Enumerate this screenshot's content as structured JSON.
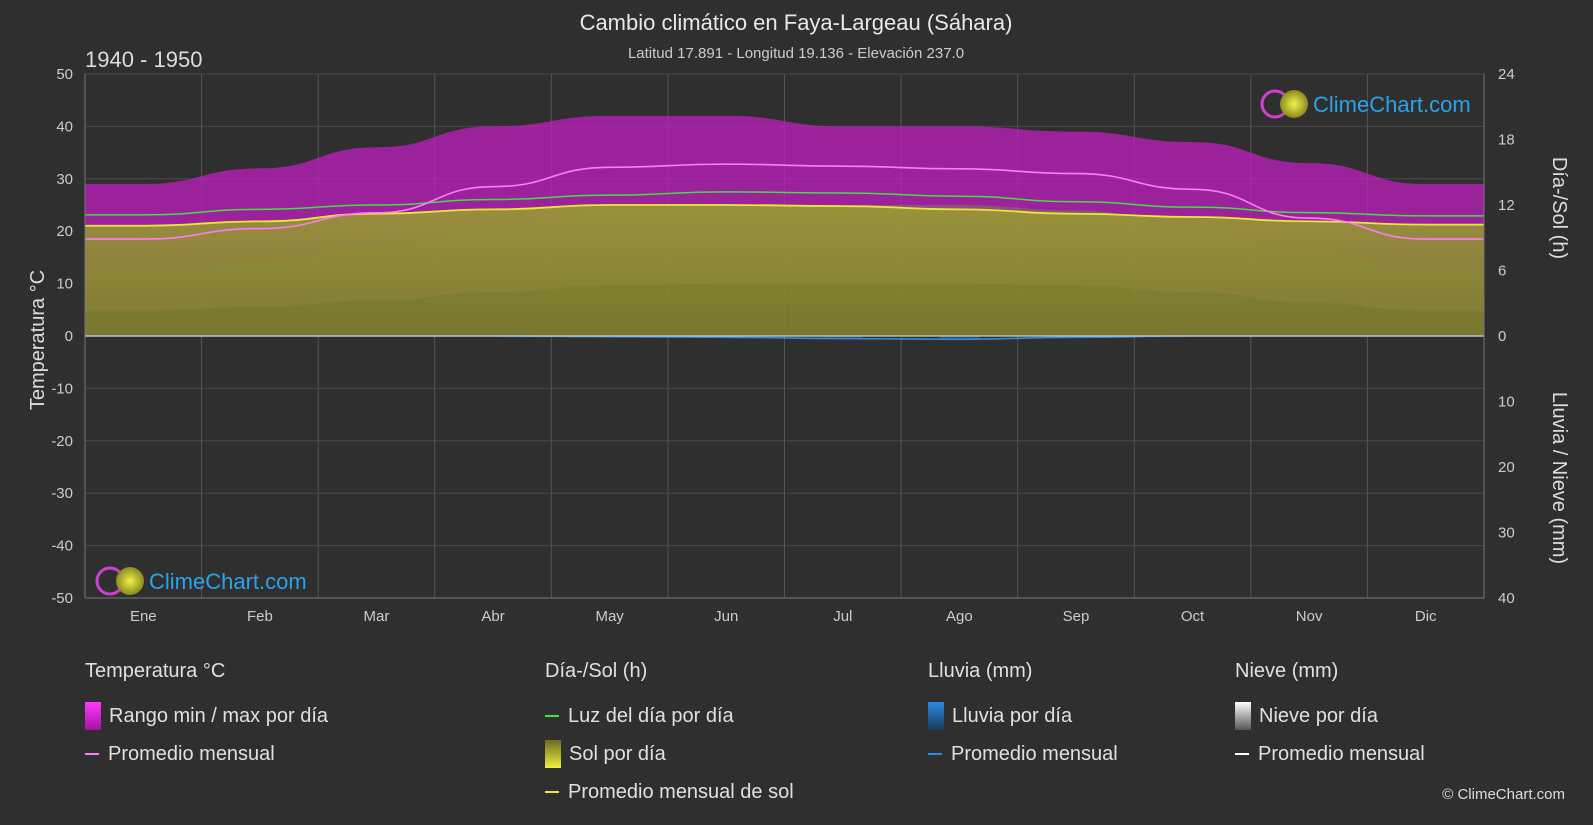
{
  "chart_data": {
    "type": "area",
    "title": "Cambio climático en Faya-Largeau (Sáhara)",
    "subtitle": "Latitud 17.891 - Longitud 19.136 - Elevación 237.0",
    "period": "1940 - 1950",
    "y_left_label": "Temperatura °C",
    "y_right_top_label": "Día-/Sol (h)",
    "y_right_bottom_label": "Lluvia / Nieve (mm)",
    "y_left_range": [
      -50,
      50
    ],
    "y_left_ticks": [
      "50",
      "40",
      "30",
      "20",
      "10",
      "0",
      "-10",
      "-20",
      "-30",
      "-40",
      "-50"
    ],
    "y_right_top_range": [
      0,
      24
    ],
    "y_right_top_ticks": [
      "24",
      "18",
      "12",
      "6",
      "0"
    ],
    "y_right_bottom_range": [
      0,
      40
    ],
    "y_right_bottom_ticks": [
      "0",
      "10",
      "20",
      "30",
      "40"
    ],
    "months": [
      "Ene",
      "Feb",
      "Mar",
      "Abr",
      "May",
      "Jun",
      "Jul",
      "Ago",
      "Sep",
      "Oct",
      "Nov",
      "Dic"
    ],
    "grid": true,
    "series": [
      {
        "name": "Rango min / max por día",
        "kind": "band",
        "min": [
          12,
          14,
          17,
          21,
          24,
          25,
          25,
          25,
          24,
          21,
          16,
          12
        ],
        "max": [
          29,
          32,
          36,
          40,
          42,
          42,
          40,
          40,
          39,
          37,
          33,
          29
        ]
      },
      {
        "name": "Promedio mensual",
        "kind": "temperature",
        "values": [
          18.5,
          20.5,
          23.5,
          28.5,
          32.2,
          32.8,
          32.4,
          31.9,
          31.0,
          28.0,
          22.5,
          18.5
        ]
      },
      {
        "name": "Luz del día por día",
        "kind": "daylight",
        "values": [
          11.1,
          11.6,
          12.0,
          12.5,
          12.9,
          13.2,
          13.1,
          12.8,
          12.3,
          11.8,
          11.3,
          11.0
        ]
      },
      {
        "name": "Sol por día",
        "kind": "sunshine_daily",
        "values": [
          10.1,
          10.5,
          11.2,
          11.6,
          12.0,
          12.0,
          11.9,
          11.6,
          11.2,
          10.9,
          10.5,
          10.2
        ]
      },
      {
        "name": "Promedio mensual de sol",
        "kind": "sunshine",
        "values": [
          10.1,
          10.5,
          11.2,
          11.6,
          12.0,
          12.0,
          11.9,
          11.6,
          11.2,
          10.9,
          10.5,
          10.2
        ]
      },
      {
        "name": "Lluvia por día",
        "kind": "rain",
        "values": [
          0,
          0,
          0,
          0,
          0.1,
          0.2,
          0.4,
          0.5,
          0.2,
          0,
          0,
          0
        ]
      },
      {
        "name": "Promedio mensual",
        "kind": "rain_avg",
        "values": [
          0,
          0,
          0,
          0,
          0.1,
          0.2,
          0.4,
          0.5,
          0.2,
          0,
          0,
          0
        ]
      },
      {
        "name": "Nieve por día",
        "kind": "snow",
        "values": [
          0,
          0,
          0,
          0,
          0,
          0,
          0,
          0,
          0,
          0,
          0,
          0
        ]
      },
      {
        "name": "Promedio mensual",
        "kind": "snow_avg",
        "values": [
          0,
          0,
          0,
          0,
          0,
          0,
          0,
          0,
          0,
          0,
          0,
          0
        ]
      }
    ]
  },
  "legend": {
    "temp": {
      "heading": "Temperatura °C",
      "range": "Rango min / max por día",
      "avg": "Promedio mensual"
    },
    "sun": {
      "heading": "Día-/Sol (h)",
      "daylight": "Luz del día por día",
      "sunshine": "Sol por día",
      "sun_avg": "Promedio mensual de sol"
    },
    "rain": {
      "heading": "Lluvia (mm)",
      "daily": "Lluvia por día",
      "avg": "Promedio mensual"
    },
    "snow": {
      "heading": "Nieve (mm)",
      "daily": "Nieve por día",
      "avg": "Promedio mensual"
    }
  },
  "branding": {
    "logo_text": "ClimeChart.com",
    "copyright": "© ClimeChart.com"
  },
  "colors": {
    "background": "#2f2f2f",
    "temp_band": "#c21fc2",
    "temp_low_band": "#d870b8",
    "temp_avg": "#ff7cf0",
    "daylight": "#44dd44",
    "sunshine_fill": "#8e8e32",
    "sunshine_avg": "#e8e83a",
    "rain": "#2a8ce0",
    "snow": "#ffffff",
    "logo": "#2aa3e8"
  }
}
